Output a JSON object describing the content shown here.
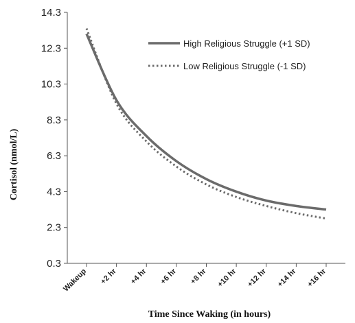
{
  "chart_data": {
    "type": "line",
    "title": "",
    "xlabel": "Time Since Waking (in hours)",
    "ylabel": "Cortisol (nmol/L)",
    "ylim": [
      0.3,
      14.3
    ],
    "y_ticks": [
      "14.3",
      "12.3",
      "10.3",
      "8.3",
      "6.3",
      "4.3",
      "2.3",
      "0.3"
    ],
    "categories": [
      "Wakeup",
      "+2 hr",
      "+4 hr",
      "+6 hr",
      "+8 hr",
      "+10 hr",
      "+12 hr",
      "+14 hr",
      "+16 hr"
    ],
    "x": [
      0,
      2,
      4,
      6,
      8,
      10,
      12,
      14,
      16
    ],
    "grid": false,
    "legend_position": "top-right",
    "series": [
      {
        "name": "High Religious Struggle (+1 SD)",
        "style": "solid",
        "color": "#6b6b6b",
        "values": [
          13.1,
          9.4,
          7.4,
          6.0,
          5.0,
          4.3,
          3.8,
          3.5,
          3.3
        ]
      },
      {
        "name": "Low Religious Struggle (-1 SD)",
        "style": "dotted",
        "color": "#6b6b6b",
        "values": [
          13.4,
          9.2,
          7.1,
          5.7,
          4.7,
          4.0,
          3.5,
          3.1,
          2.8
        ]
      }
    ]
  }
}
